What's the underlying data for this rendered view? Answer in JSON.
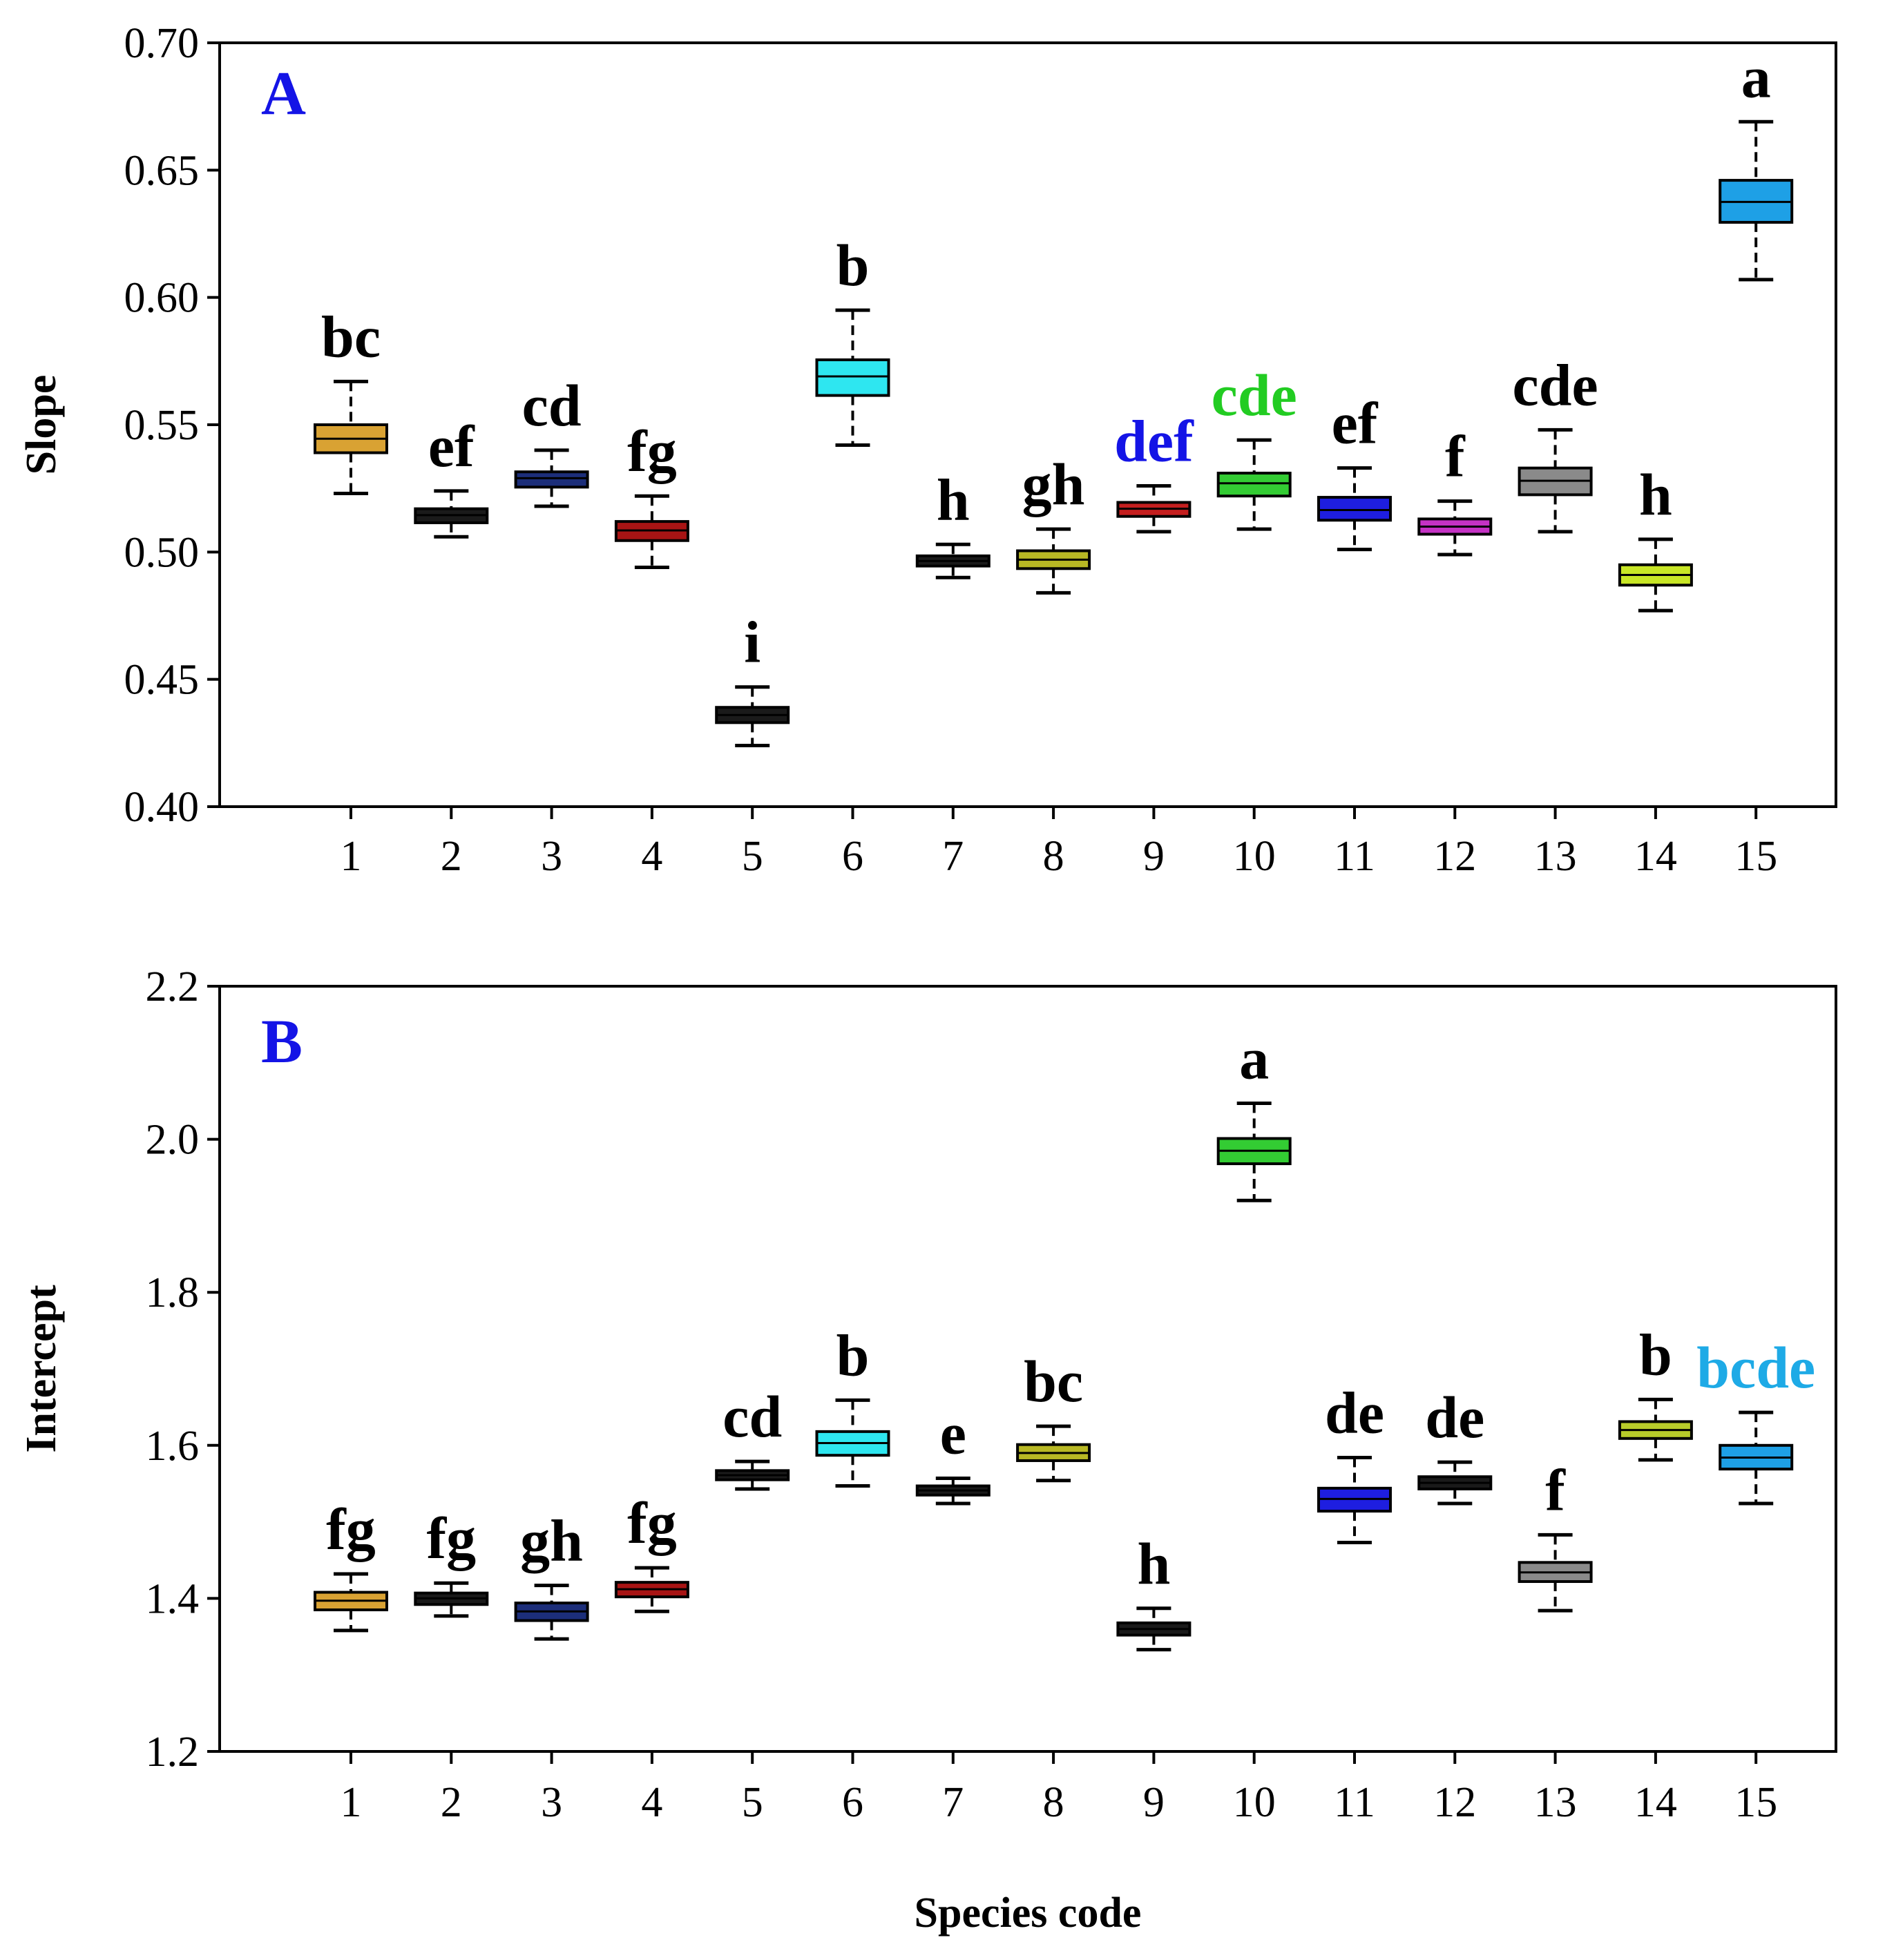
{
  "x_axis_title": "Species code",
  "chart_data": [
    {
      "type": "box",
      "panel": "A",
      "ylabel": "Slope",
      "xlabel": "",
      "ylim": [
        0.4,
        0.7
      ],
      "yticks": [
        "0.40",
        "0.45",
        "0.50",
        "0.55",
        "0.60",
        "0.65",
        "0.70"
      ],
      "categories": [
        "1",
        "2",
        "3",
        "4",
        "5",
        "6",
        "7",
        "8",
        "9",
        "10",
        "11",
        "12",
        "13",
        "14",
        "15"
      ],
      "series": [
        {
          "name": "1",
          "color": "#D9A233",
          "low": 0.523,
          "q1": 0.539,
          "median": 0.5445,
          "q3": 0.55,
          "high": 0.567,
          "letter": "bc",
          "letter_color": "#000000"
        },
        {
          "name": "2",
          "color": "#1A1A1A",
          "low": 0.506,
          "q1": 0.5115,
          "median": 0.5145,
          "q3": 0.517,
          "high": 0.524,
          "letter": "ef",
          "letter_color": "#000000"
        },
        {
          "name": "3",
          "color": "#1C2E7A",
          "low": 0.518,
          "q1": 0.5255,
          "median": 0.529,
          "q3": 0.5315,
          "high": 0.54,
          "letter": "cd",
          "letter_color": "#000000"
        },
        {
          "name": "4",
          "color": "#A81414",
          "low": 0.494,
          "q1": 0.5045,
          "median": 0.5085,
          "q3": 0.512,
          "high": 0.522,
          "letter": "fg",
          "letter_color": "#000000"
        },
        {
          "name": "5",
          "color": "#1A1A1A",
          "low": 0.424,
          "q1": 0.433,
          "median": 0.436,
          "q3": 0.439,
          "high": 0.447,
          "letter": "i",
          "letter_color": "#000000"
        },
        {
          "name": "6",
          "color": "#2EE6F0",
          "low": 0.542,
          "q1": 0.5615,
          "median": 0.569,
          "q3": 0.5755,
          "high": 0.595,
          "letter": "b",
          "letter_color": "#000000"
        },
        {
          "name": "7",
          "color": "#1A1A1A",
          "low": 0.49,
          "q1": 0.4945,
          "median": 0.4965,
          "q3": 0.4985,
          "high": 0.503,
          "letter": "h",
          "letter_color": "#000000"
        },
        {
          "name": "8",
          "color": "#B8B824",
          "low": 0.484,
          "q1": 0.4935,
          "median": 0.497,
          "q3": 0.5005,
          "high": 0.509,
          "letter": "gh",
          "letter_color": "#000000"
        },
        {
          "name": "9",
          "color": "#C41E1E",
          "low": 0.508,
          "q1": 0.514,
          "median": 0.517,
          "q3": 0.5195,
          "high": 0.526,
          "letter": "def",
          "letter_color": "#1414E6"
        },
        {
          "name": "10",
          "color": "#33CC33",
          "low": 0.509,
          "q1": 0.522,
          "median": 0.527,
          "q3": 0.531,
          "high": 0.544,
          "letter": "cde",
          "letter_color": "#22CC22"
        },
        {
          "name": "11",
          "color": "#1E1EE0",
          "low": 0.501,
          "q1": 0.5125,
          "median": 0.5165,
          "q3": 0.5215,
          "high": 0.533,
          "letter": "ef",
          "letter_color": "#000000"
        },
        {
          "name": "12",
          "color": "#C432C4",
          "low": 0.499,
          "q1": 0.507,
          "median": 0.51,
          "q3": 0.513,
          "high": 0.52,
          "letter": "f",
          "letter_color": "#000000"
        },
        {
          "name": "13",
          "color": "#8A8A8A",
          "low": 0.508,
          "q1": 0.5225,
          "median": 0.528,
          "q3": 0.533,
          "high": 0.548,
          "letter": "cde",
          "letter_color": "#000000"
        },
        {
          "name": "14",
          "color": "#C8E626",
          "low": 0.477,
          "q1": 0.487,
          "median": 0.491,
          "q3": 0.495,
          "high": 0.505,
          "letter": "h",
          "letter_color": "#000000"
        },
        {
          "name": "15",
          "color": "#1EA0E6",
          "low": 0.607,
          "q1": 0.6295,
          "median": 0.6375,
          "q3": 0.646,
          "high": 0.669,
          "letter": "a",
          "letter_color": "#000000"
        }
      ]
    },
    {
      "type": "box",
      "panel": "B",
      "ylabel": "Intercept",
      "xlabel": "Species code",
      "ylim": [
        1.2,
        2.2
      ],
      "yticks": [
        "1.2",
        "1.4",
        "1.6",
        "1.8",
        "2.0",
        "2.2"
      ],
      "categories": [
        "1",
        "2",
        "3",
        "4",
        "5",
        "6",
        "7",
        "8",
        "9",
        "10",
        "11",
        "12",
        "13",
        "14",
        "15"
      ],
      "series": [
        {
          "name": "1",
          "color": "#D9A233",
          "low": 1.358,
          "q1": 1.385,
          "median": 1.397,
          "q3": 1.408,
          "high": 1.432,
          "letter": "fg",
          "letter_color": "#000000"
        },
        {
          "name": "2",
          "color": "#1A1A1A",
          "low": 1.377,
          "q1": 1.392,
          "median": 1.4,
          "q3": 1.407,
          "high": 1.42,
          "letter": "fg",
          "letter_color": "#000000"
        },
        {
          "name": "3",
          "color": "#1C2E7A",
          "low": 1.347,
          "q1": 1.371,
          "median": 1.383,
          "q3": 1.394,
          "high": 1.417,
          "letter": "gh",
          "letter_color": "#000000"
        },
        {
          "name": "4",
          "color": "#A81414",
          "low": 1.383,
          "q1": 1.402,
          "median": 1.412,
          "q3": 1.421,
          "high": 1.44,
          "letter": "fg",
          "letter_color": "#000000"
        },
        {
          "name": "5",
          "color": "#1A1A1A",
          "low": 1.543,
          "q1": 1.555,
          "median": 1.561,
          "q3": 1.567,
          "high": 1.579,
          "letter": "cd",
          "letter_color": "#000000"
        },
        {
          "name": "6",
          "color": "#2EE6F0",
          "low": 1.547,
          "q1": 1.587,
          "median": 1.603,
          "q3": 1.618,
          "high": 1.659,
          "letter": "b",
          "letter_color": "#000000"
        },
        {
          "name": "7",
          "color": "#1A1A1A",
          "low": 1.524,
          "q1": 1.535,
          "median": 1.541,
          "q3": 1.547,
          "high": 1.557,
          "letter": "e",
          "letter_color": "#000000"
        },
        {
          "name": "8",
          "color": "#B8B824",
          "low": 1.554,
          "q1": 1.58,
          "median": 1.59,
          "q3": 1.601,
          "high": 1.625,
          "letter": "bc",
          "letter_color": "#000000"
        },
        {
          "name": "9",
          "color": "#1A1A1A",
          "low": 1.333,
          "q1": 1.352,
          "median": 1.36,
          "q3": 1.368,
          "high": 1.387,
          "letter": "h",
          "letter_color": "#000000"
        },
        {
          "name": "10",
          "color": "#33CC33",
          "low": 1.92,
          "q1": 1.968,
          "median": 1.985,
          "q3": 2.001,
          "high": 2.047,
          "letter": "a",
          "letter_color": "#000000"
        },
        {
          "name": "11",
          "color": "#1E1EE0",
          "low": 1.473,
          "q1": 1.514,
          "median": 1.53,
          "q3": 1.544,
          "high": 1.584,
          "letter": "de",
          "letter_color": "#000000"
        },
        {
          "name": "12",
          "color": "#1A1A1A",
          "low": 1.524,
          "q1": 1.543,
          "median": 1.551,
          "q3": 1.559,
          "high": 1.578,
          "letter": "de",
          "letter_color": "#000000"
        },
        {
          "name": "13",
          "color": "#8A8A8A",
          "low": 1.384,
          "q1": 1.422,
          "median": 1.434,
          "q3": 1.447,
          "high": 1.483,
          "letter": "f",
          "letter_color": "#000000"
        },
        {
          "name": "14",
          "color": "#B8CC2A",
          "low": 1.581,
          "q1": 1.609,
          "median": 1.62,
          "q3": 1.631,
          "high": 1.66,
          "letter": "b",
          "letter_color": "#000000"
        },
        {
          "name": "15",
          "color": "#1EA0E6",
          "low": 1.524,
          "q1": 1.569,
          "median": 1.584,
          "q3": 1.6,
          "high": 1.643,
          "letter": "bcde",
          "letter_color": "#1EAAE6"
        }
      ]
    }
  ]
}
